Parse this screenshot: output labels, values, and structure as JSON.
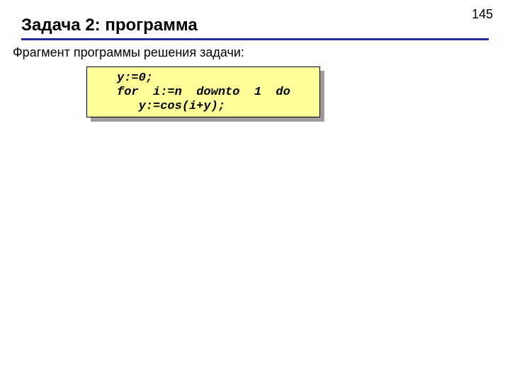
{
  "page": {
    "number": "145",
    "title": "Задача 2: программа",
    "subtitle": "Фрагмент программы решения задачи:",
    "pageNumberColor": "#000000",
    "titleColor": "#000000",
    "subtitleColor": "#000000",
    "underlineColor": "#1f2e9e",
    "background": "#ffffff"
  },
  "codebox": {
    "background": "#ffff99",
    "borderColor": "#000000",
    "shadowColor": "#9c9c9c",
    "fontFamily": "Courier New",
    "fontStyle": "italic",
    "fontWeight": "bold",
    "fontSizePt": 13,
    "textColor": "#000000",
    "lines": {
      "l1": "y:=0;",
      "l2": "for  i:=n  downto  1  do",
      "l3": "   y:=cos(i+y);"
    }
  }
}
